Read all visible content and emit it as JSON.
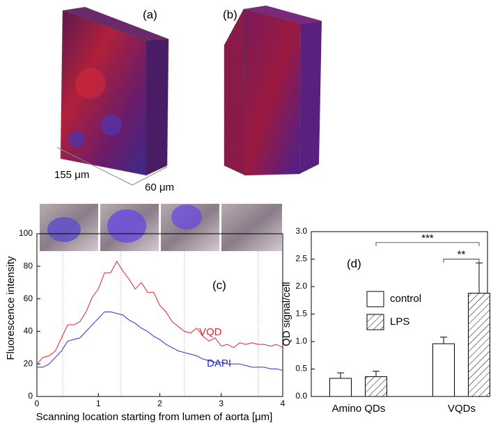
{
  "figure": {
    "panel_a": "(a)",
    "panel_b": "(b)",
    "dim_length": "155 μm",
    "dim_width": "60 μm"
  },
  "chart_data": [
    {
      "type": "line",
      "title": "(c)",
      "x_label": "Scanning location starting from lumen of aorta [μm]",
      "y_label": "Fluorescence intensity",
      "x": [
        0,
        0.1,
        0.2,
        0.3,
        0.4,
        0.5,
        0.6,
        0.7,
        0.8,
        0.9,
        1,
        1.1,
        1.2,
        1.3,
        1.4,
        1.5,
        1.6,
        1.7,
        1.8,
        1.9,
        2,
        2.1,
        2.2,
        2.3,
        2.4,
        2.5,
        2.6,
        2.7,
        2.8,
        2.9,
        3,
        3.1,
        3.2,
        3.3,
        3.4,
        3.5,
        3.6,
        3.7,
        3.8,
        3.9,
        4
      ],
      "series": [
        {
          "name": "VQD",
          "color": "#e8202a",
          "values": [
            20,
            24,
            25,
            28,
            36,
            44,
            44,
            46,
            52,
            61,
            66,
            76,
            76,
            83,
            77,
            72,
            66,
            70,
            64,
            64,
            56,
            52,
            46,
            43,
            40,
            39,
            42,
            37,
            34,
            36,
            31,
            32,
            30,
            33,
            32,
            33,
            32,
            32,
            31,
            32,
            30
          ]
        },
        {
          "name": "DAPI",
          "color": "#2a2ae0",
          "values": [
            18,
            18,
            20,
            24,
            28,
            34,
            35,
            36,
            40,
            44,
            48,
            52,
            52,
            51,
            50,
            47,
            45,
            42,
            40,
            37,
            35,
            32,
            30,
            28,
            27,
            26,
            25,
            23,
            22,
            21,
            21,
            20,
            20,
            20,
            19,
            18,
            18,
            18,
            17,
            17,
            16
          ]
        }
      ],
      "reference_lines": [
        0.42,
        1.37,
        2.4,
        3.6
      ],
      "xlim": [
        0,
        4
      ],
      "xticks": [
        0,
        1,
        2,
        3,
        4
      ],
      "ylim": [
        0,
        100
      ],
      "yticks": [
        0,
        20,
        40,
        60,
        80,
        100
      ]
    },
    {
      "type": "bar",
      "title": "(d)",
      "y_label": "QD signal/cell",
      "categories": [
        "Amino QDs",
        "VQDs"
      ],
      "series": [
        {
          "name": "control",
          "color": "#ffffff",
          "hatch": false,
          "values": [
            0.33,
            0.96
          ],
          "errors": [
            0.1,
            0.12
          ]
        },
        {
          "name": "LPS",
          "color": "#ffffff",
          "hatch": true,
          "values": [
            0.36,
            1.88
          ],
          "errors": [
            0.1,
            0.55
          ]
        }
      ],
      "significance": [
        {
          "label": "***",
          "y": 2.8
        },
        {
          "label": "**",
          "y": 2.5
        }
      ],
      "legend": "left-middle",
      "ylim": [
        0,
        3
      ],
      "yticks": [
        {
          "value": 0,
          "label": "0.0"
        },
        {
          "value": 0.5,
          "label": "0.5"
        },
        {
          "value": 1,
          "label": "1.0"
        },
        {
          "value": 1.5,
          "label": "1.5"
        },
        {
          "value": 2,
          "label": "2.0"
        },
        {
          "value": 2.5,
          "label": "2.5"
        },
        {
          "value": 3,
          "label": "3.0"
        }
      ]
    }
  ]
}
